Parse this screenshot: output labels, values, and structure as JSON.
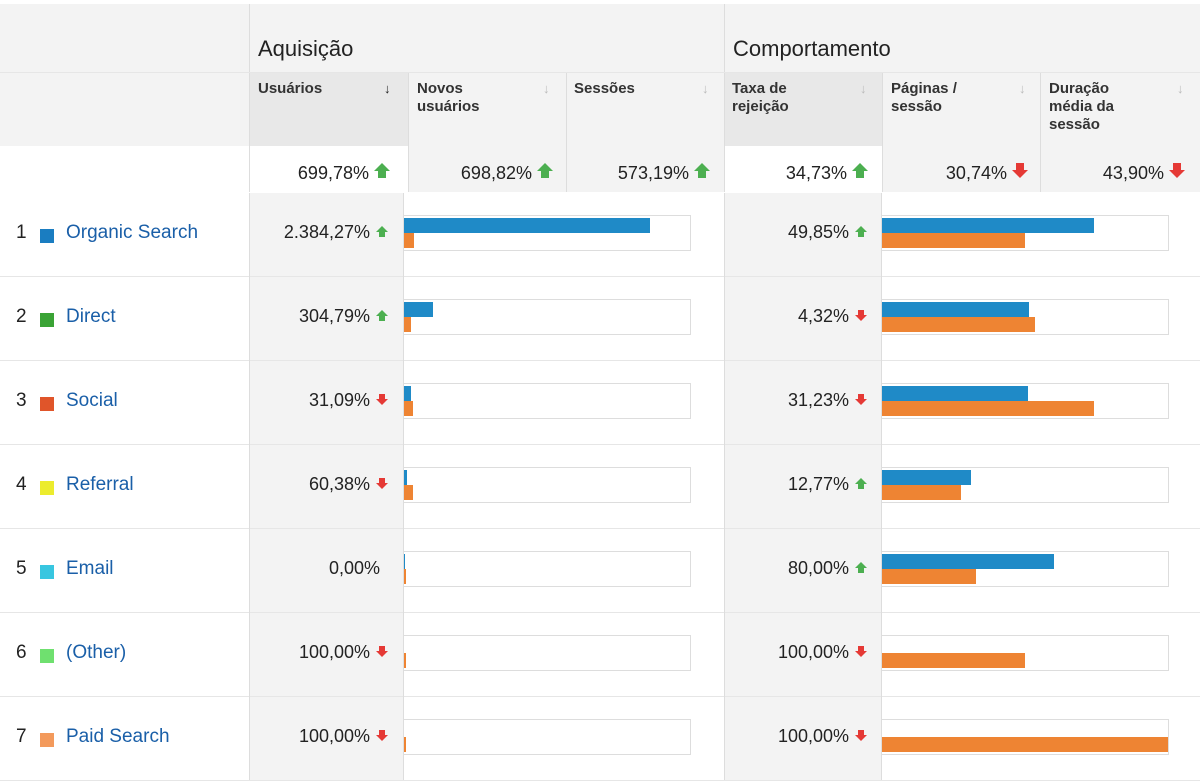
{
  "groups": {
    "acquisition": "Aquisição",
    "behavior": "Comportamento"
  },
  "columns": [
    {
      "label": "Usuários",
      "sorted": true
    },
    {
      "label": "Novos usuários",
      "sorted": false
    },
    {
      "label": "Sessões",
      "sorted": false
    },
    {
      "label": "Taxa de rejeição",
      "sorted": false
    },
    {
      "label": "Páginas / sessão",
      "sorted": false
    },
    {
      "label": "Duração média da sessão",
      "sorted": false
    }
  ],
  "summary": [
    {
      "value": "699,78%",
      "trend": "up"
    },
    {
      "value": "698,82%",
      "trend": "up"
    },
    {
      "value": "573,19%",
      "trend": "up"
    },
    {
      "value": "34,73%",
      "trend": "up"
    },
    {
      "value": "30,74%",
      "trend": "down"
    },
    {
      "value": "43,90%",
      "trend": "down"
    }
  ],
  "colors": {
    "blue_bar": "#1f8ac7",
    "orange_bar": "#ee8433",
    "link": "#1a5fa8",
    "up": "#4caf50",
    "down": "#e53935"
  },
  "rows": [
    {
      "num": "1",
      "label": "Organic Search",
      "color": "#1a7dc1",
      "users": "2.384,27%",
      "users_trend": "up",
      "bounce": "49,85%",
      "bounce_trend": "up",
      "users_bars": [
        0.86,
        0.035
      ],
      "bounce_bars": [
        0.74,
        0.5
      ]
    },
    {
      "num": "2",
      "label": "Direct",
      "color": "#3aa335",
      "users": "304,79%",
      "users_trend": "up",
      "bounce": "4,32%",
      "bounce_trend": "down",
      "users_bars": [
        0.1,
        0.025
      ],
      "bounce_bars": [
        0.515,
        0.535
      ]
    },
    {
      "num": "3",
      "label": "Social",
      "color": "#e0552a",
      "users": "31,09%",
      "users_trend": "down",
      "bounce": "31,23%",
      "bounce_trend": "down",
      "users_bars": [
        0.025,
        0.033
      ],
      "bounce_bars": [
        0.51,
        0.74
      ]
    },
    {
      "num": "4",
      "label": "Referral",
      "color": "#ecec2e",
      "users": "60,38%",
      "users_trend": "down",
      "bounce": "12,77%",
      "bounce_trend": "up",
      "users_bars": [
        0.01,
        0.03
      ],
      "bounce_bars": [
        0.31,
        0.275
      ]
    },
    {
      "num": "5",
      "label": "Email",
      "color": "#38c6e0",
      "users": "0,00%",
      "users_trend": "none",
      "bounce": "80,00%",
      "bounce_trend": "up",
      "users_bars": [
        0.004,
        0.004
      ],
      "bounce_bars": [
        0.6,
        0.33
      ]
    },
    {
      "num": "6",
      "label": "(Other)",
      "color": "#6fe06f",
      "users": "100,00%",
      "users_trend": "down",
      "bounce": "100,00%",
      "bounce_trend": "down",
      "users_bars": [
        0,
        0.004
      ],
      "bounce_bars": [
        0,
        0.5
      ]
    },
    {
      "num": "7",
      "label": "Paid Search",
      "color": "#f39a5c",
      "users": "100,00%",
      "users_trend": "down",
      "bounce": "100,00%",
      "bounce_trend": "down",
      "users_bars": [
        0,
        0.004
      ],
      "bounce_bars": [
        0,
        1.0
      ]
    }
  ]
}
